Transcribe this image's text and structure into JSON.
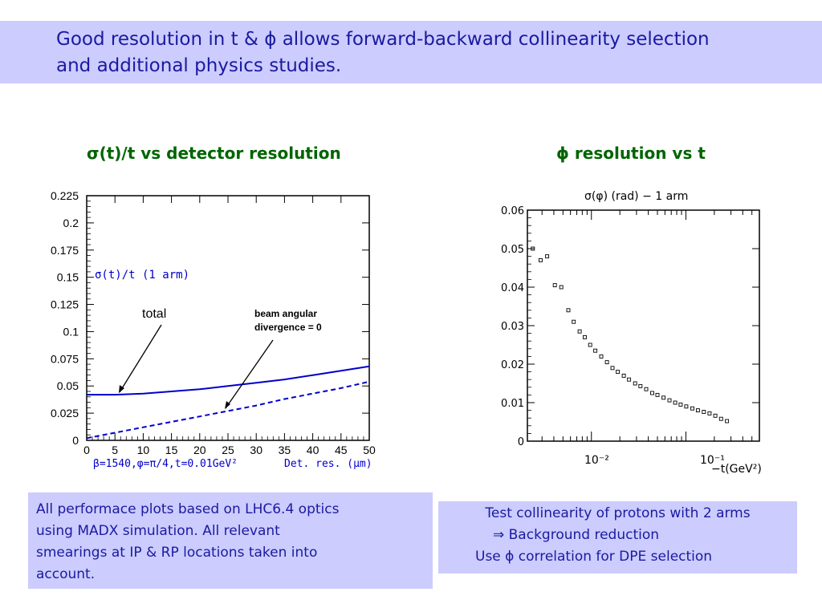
{
  "header": {
    "text_line1": "Good resolution in t & ϕ allows forward-backward collinearity selection",
    "text_line2": "and additional physics studies."
  },
  "left_chart": {
    "title": "σ(t)/t vs detector resolution",
    "inner_label": "σ(t)/t (1 arm)",
    "annotation_total": "total",
    "annotation_beam_line1": "beam angular",
    "annotation_beam_line2": "divergence = 0",
    "footer_params": "β=1540,φ=π/4,t=0.01GeV²",
    "footer_axis": "Det. res. (μm)"
  },
  "right_chart": {
    "title": "ϕ resolution vs t",
    "inner_title": "σ(φ) (rad) − 1 arm",
    "x_tick_labels": [
      "10⁻²",
      "10⁻¹"
    ],
    "x_axis_label": "−t(GeV²)"
  },
  "notes": {
    "left_box": [
      "All performace plots based on LHC6.4 optics",
      "using MADX simulation. All relevant",
      "smearings at IP & RP locations taken into",
      "account."
    ],
    "right_box": [
      "Test collinearity of protons with 2 arms",
      "⇒ Background reduction",
      "Use ϕ correlation for DPE selection"
    ]
  },
  "colors": {
    "header_bg": "#ccccff",
    "text_blue": "#1a1aa0",
    "title_green": "#006400",
    "curve_blue": "#0000cc"
  },
  "chart_data": [
    {
      "type": "line",
      "xlabel": "Det. res. (μm)",
      "ylabel": "",
      "xlim": [
        0,
        50
      ],
      "ylim": [
        0,
        0.225
      ],
      "x_ticks": [
        0,
        5,
        10,
        15,
        20,
        25,
        30,
        35,
        40,
        45,
        50
      ],
      "x_tick_labels": [
        "0",
        "5",
        "10",
        "15",
        "20",
        "25",
        "30",
        "35",
        "40",
        "45",
        "50"
      ],
      "y_ticks": [
        0,
        0.025,
        0.05,
        0.075,
        0.1,
        0.125,
        0.15,
        0.175,
        0.2,
        0.225
      ],
      "y_tick_labels": [
        "0",
        "0.025",
        "0.05",
        "0.075",
        "0.1",
        "0.125",
        "0.15",
        "0.175",
        "0.2",
        "0.225"
      ],
      "series": [
        {
          "style": "solid",
          "x": [
            0,
            5,
            10,
            15,
            20,
            25,
            30,
            35,
            40,
            45,
            50
          ],
          "values": [
            0.042,
            0.042,
            0.043,
            0.045,
            0.047,
            0.05,
            0.053,
            0.056,
            0.06,
            0.064,
            0.068
          ]
        },
        {
          "style": "dashed",
          "x": [
            0,
            5,
            10,
            15,
            20,
            25,
            30,
            35,
            40,
            45,
            50
          ],
          "values": [
            0.002,
            0.007,
            0.012,
            0.017,
            0.022,
            0.027,
            0.032,
            0.038,
            0.043,
            0.048,
            0.054
          ]
        }
      ]
    },
    {
      "type": "scatter",
      "log_x": true,
      "xlabel": "−t(GeV²)",
      "xlim": [
        0.0021,
        0.6
      ],
      "ylim": [
        0,
        0.06
      ],
      "y_ticks": [
        0,
        0.01,
        0.02,
        0.03,
        0.04,
        0.05,
        0.06
      ],
      "y_tick_labels": [
        "0",
        "0.01",
        "0.02",
        "0.03",
        "0.04",
        "0.05",
        "0.06"
      ],
      "x": [
        0.0024,
        0.0029,
        0.0034,
        0.0041,
        0.0048,
        0.0057,
        0.0065,
        0.0075,
        0.0085,
        0.0097,
        0.011,
        0.0127,
        0.0146,
        0.0167,
        0.019,
        0.022,
        0.025,
        0.029,
        0.033,
        0.038,
        0.044,
        0.05,
        0.058,
        0.067,
        0.077,
        0.088,
        0.101,
        0.117,
        0.134,
        0.155,
        0.178,
        0.205,
        0.236,
        0.272
      ],
      "y": [
        0.05,
        0.047,
        0.048,
        0.0405,
        0.04,
        0.034,
        0.031,
        0.0285,
        0.027,
        0.025,
        0.0235,
        0.022,
        0.0205,
        0.019,
        0.018,
        0.017,
        0.016,
        0.015,
        0.0143,
        0.0135,
        0.0125,
        0.012,
        0.0113,
        0.0106,
        0.01,
        0.0095,
        0.009,
        0.0085,
        0.008,
        0.0076,
        0.0072,
        0.0066,
        0.0058,
        0.0052
      ]
    }
  ]
}
